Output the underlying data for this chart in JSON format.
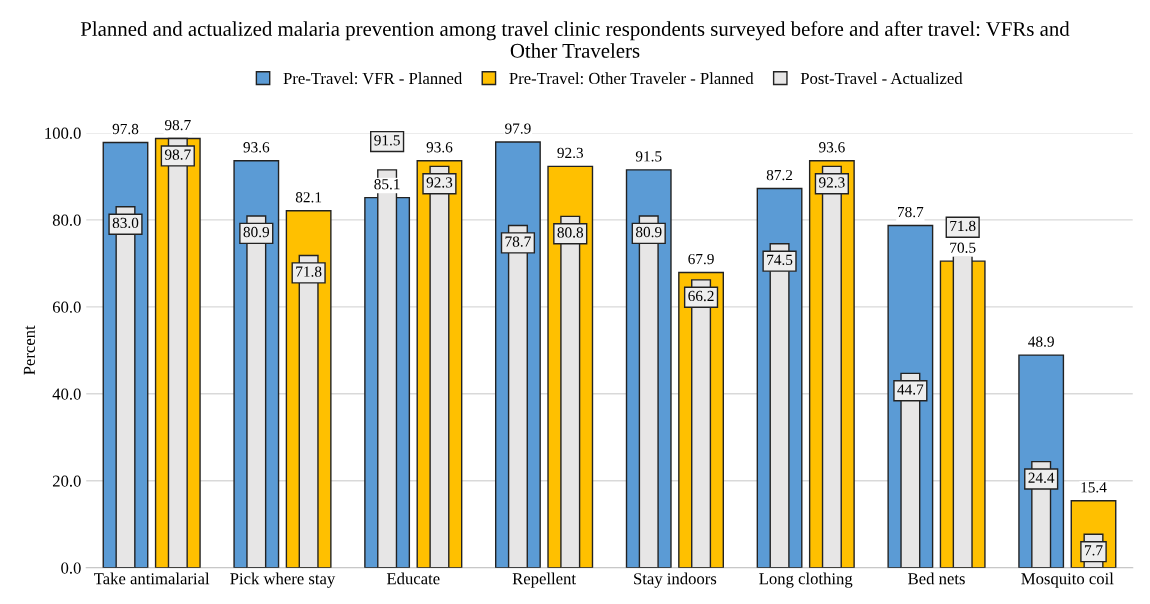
{
  "chart_data": {
    "type": "bar",
    "title": "Planned and actualized malaria prevention among travel clinic respondents surveyed before and after travel: VFRs and Other Travelers",
    "ylabel": "Percent",
    "categories": [
      "Take antimalarial",
      "Pick where stay",
      "Educate",
      "Repellent",
      "Stay indoors",
      "Long clothing",
      "Bed nets",
      "Mosquito coil"
    ],
    "series": [
      {
        "name": "Pre-Travel: VFR - Planned",
        "color": "#5b9bd5",
        "values": [
          97.8,
          93.6,
          85.1,
          97.9,
          91.5,
          87.2,
          78.7,
          48.9
        ],
        "value_labels": [
          "97.8",
          "93.6",
          "85.1",
          "97.9",
          "91.5",
          "87.2",
          "78.7",
          "48.9"
        ]
      },
      {
        "name": "Post-Travel - Actualized",
        "color": "#e7e6e6",
        "values": [
          83.0,
          80.9,
          91.5,
          78.7,
          80.9,
          74.5,
          44.7,
          24.4
        ],
        "value_labels": [
          "83.0",
          "80.9",
          "91.5",
          "78.7",
          "80.9",
          "74.5",
          "44.7",
          "24.4"
        ]
      },
      {
        "name": "Pre-Travel: Other Traveler - Planned",
        "color": "#ffc000",
        "values": [
          98.7,
          82.1,
          93.6,
          92.3,
          67.9,
          93.6,
          70.5,
          15.4
        ],
        "value_labels": [
          "98.7",
          "82.1",
          "93.6",
          "92.3",
          "67.9",
          "93.6",
          "70.5",
          "15.4"
        ]
      },
      {
        "color": "#e7e6e6",
        "values": [
          98.7,
          71.8,
          92.3,
          80.8,
          66.2,
          92.3,
          71.8,
          7.7
        ],
        "value_labels": [
          "98.7",
          "71.8",
          "92.3",
          "80.8",
          "66.2",
          "92.3",
          "71.8",
          "7.7"
        ]
      }
    ],
    "ylim": [
      0,
      100
    ],
    "yticks": [
      {
        "value": 0,
        "label": "0.0"
      },
      {
        "value": 20,
        "label": "20.0"
      },
      {
        "value": 40,
        "label": "40.0"
      },
      {
        "value": 60,
        "label": "60.0"
      },
      {
        "value": 80,
        "label": "80.0"
      },
      {
        "value": 100,
        "label": "100.0"
      }
    ],
    "grid": "y",
    "legend": "top"
  }
}
